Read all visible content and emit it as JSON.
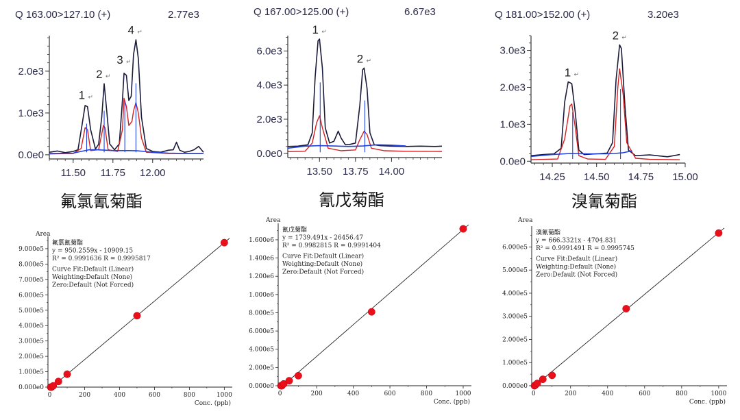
{
  "chart_data": [
    {
      "type": "line",
      "kind": "chromatogram",
      "transition": "Q 163.00>127.10 (+)",
      "intensity": "2.77e3",
      "compound": "氟氯氰菊酯",
      "x_ticks": [
        "11.50",
        "11.75",
        "12.00"
      ],
      "y_ticks": [
        "0.0e0",
        "1.0e3",
        "2.0e3"
      ],
      "xlim": [
        11.35,
        12.32
      ],
      "ylim": [
        -100,
        2850
      ],
      "peaks": [
        {
          "label": "1",
          "rt": 11.58,
          "height": 1200
        },
        {
          "label": "2",
          "rt": 11.69,
          "height": 1700
        },
        {
          "label": "3",
          "rt": 11.82,
          "height": 2050
        },
        {
          "label": "4",
          "rt": 11.89,
          "height": 2760
        }
      ],
      "series": [
        {
          "name": "black",
          "color": "#1a1a3a",
          "x": [
            11.35,
            11.4,
            11.45,
            11.5,
            11.53,
            11.555,
            11.575,
            11.59,
            11.61,
            11.64,
            11.66,
            11.68,
            11.695,
            11.71,
            11.73,
            11.76,
            11.79,
            11.81,
            11.82,
            11.835,
            11.85,
            11.865,
            11.88,
            11.895,
            11.91,
            11.93,
            11.96,
            12.0,
            12.05,
            12.1,
            12.13,
            12.15,
            12.17,
            12.2,
            12.23,
            12.26,
            12.29,
            12.32
          ],
          "y": [
            60,
            90,
            50,
            80,
            120,
            700,
            1180,
            1150,
            600,
            140,
            250,
            900,
            1700,
            1100,
            260,
            120,
            260,
            1300,
            1950,
            1900,
            1300,
            1400,
            2400,
            2750,
            2300,
            900,
            150,
            80,
            60,
            110,
            120,
            300,
            110,
            60,
            80,
            120,
            200,
            60
          ]
        },
        {
          "name": "red",
          "color": "#d42020",
          "x": [
            11.35,
            11.5,
            11.55,
            11.575,
            11.59,
            11.61,
            11.66,
            11.69,
            11.7,
            11.72,
            11.78,
            11.81,
            11.82,
            11.835,
            11.85,
            11.87,
            11.88,
            11.895,
            11.91,
            11.93,
            11.96,
            12.1,
            12.32
          ],
          "y": [
            20,
            30,
            150,
            650,
            600,
            100,
            120,
            700,
            650,
            120,
            80,
            600,
            1350,
            1150,
            700,
            800,
            1050,
            1250,
            1000,
            400,
            60,
            30,
            30
          ]
        },
        {
          "name": "blue",
          "color": "#2040e0",
          "x": [
            11.35,
            11.5,
            11.55,
            11.6,
            11.65,
            11.7,
            11.75,
            11.8,
            11.85,
            11.9,
            11.95,
            12.0,
            12.1,
            12.2,
            12.32
          ],
          "y": [
            30,
            40,
            80,
            120,
            120,
            110,
            100,
            100,
            100,
            95,
            80,
            60,
            40,
            30,
            30
          ]
        }
      ]
    },
    {
      "type": "line",
      "kind": "chromatogram",
      "transition": "Q 167.00>125.00 (+)",
      "intensity": "6.67e3",
      "compound": "氰戊菊酯",
      "x_ticks": [
        "13.50",
        "13.75",
        "14.00"
      ],
      "y_ticks": [
        "0.0e0",
        "2.0e3",
        "4.0e3",
        "6.0e3"
      ],
      "xlim": [
        13.28,
        14.35
      ],
      "ylim": [
        -250,
        6900
      ],
      "peaks": [
        {
          "label": "1",
          "rt": 13.5,
          "height": 6700
        },
        {
          "label": "2",
          "rt": 13.81,
          "height": 5000
        }
      ],
      "series": [
        {
          "name": "black",
          "color": "#1a1a3a",
          "x": [
            13.28,
            13.35,
            13.42,
            13.45,
            13.47,
            13.49,
            13.5,
            13.52,
            13.54,
            13.57,
            13.6,
            13.63,
            13.65,
            13.68,
            13.71,
            13.75,
            13.78,
            13.8,
            13.81,
            13.83,
            13.85,
            13.88,
            13.92,
            14.0,
            14.1,
            14.2,
            14.3,
            14.35
          ],
          "y": [
            400,
            420,
            500,
            1200,
            4500,
            6600,
            6700,
            5000,
            1500,
            600,
            700,
            1300,
            900,
            500,
            520,
            600,
            2800,
            4900,
            5000,
            3800,
            1200,
            500,
            450,
            420,
            400,
            420,
            400,
            420
          ]
        },
        {
          "name": "red",
          "color": "#d42020",
          "x": [
            13.28,
            13.4,
            13.45,
            13.48,
            13.5,
            13.52,
            13.56,
            13.65,
            13.75,
            13.78,
            13.81,
            13.83,
            13.86,
            13.95,
            14.1,
            14.35
          ],
          "y": [
            100,
            120,
            600,
            1800,
            2200,
            1500,
            300,
            150,
            200,
            800,
            1300,
            1100,
            300,
            150,
            120,
            110
          ]
        },
        {
          "name": "blue",
          "color": "#2040e0",
          "x": [
            13.28,
            13.4,
            13.5,
            13.6,
            13.7,
            13.8,
            13.9,
            14.0,
            14.1
          ],
          "y": [
            300,
            420,
            450,
            430,
            400,
            430,
            500,
            480,
            430
          ]
        }
      ]
    },
    {
      "type": "line",
      "kind": "chromatogram",
      "transition": "Q 181.00>152.00 (+)",
      "intensity": "3.20e3",
      "compound": "溴氰菊酯",
      "x_ticks": [
        "14.25",
        "14.50",
        "14.75",
        "15.00"
      ],
      "y_ticks": [
        "0.0e0",
        "1.0e3",
        "2.0e3",
        "3.0e3"
      ],
      "xlim": [
        14.13,
        15.0
      ],
      "ylim": [
        -50,
        3400
      ],
      "peaks": [
        {
          "label": "1",
          "rt": 14.36,
          "height": 2150
        },
        {
          "label": "2",
          "rt": 14.63,
          "height": 3150
        }
      ],
      "series": [
        {
          "name": "black",
          "color": "#1a1a3a",
          "x": [
            14.13,
            14.2,
            14.26,
            14.3,
            14.32,
            14.34,
            14.36,
            14.38,
            14.4,
            14.43,
            14.5,
            14.56,
            14.59,
            14.61,
            14.63,
            14.64,
            14.66,
            14.68,
            14.72,
            14.8,
            14.9,
            14.97
          ],
          "y": [
            150,
            180,
            200,
            350,
            1600,
            2150,
            2100,
            1300,
            300,
            180,
            200,
            220,
            500,
            2200,
            3150,
            3050,
            1500,
            300,
            150,
            170,
            120,
            180
          ]
        },
        {
          "name": "red",
          "color": "#d42020",
          "x": [
            14.13,
            14.28,
            14.32,
            14.35,
            14.36,
            14.38,
            14.4,
            14.45,
            14.55,
            14.6,
            14.62,
            14.63,
            14.65,
            14.67,
            14.72,
            14.8,
            14.97
          ],
          "y": [
            40,
            60,
            600,
            1500,
            1550,
            900,
            150,
            60,
            50,
            400,
            2000,
            2500,
            1800,
            500,
            80,
            50,
            40
          ]
        },
        {
          "name": "blue",
          "color": "#2040e0",
          "x": [
            14.13,
            14.25,
            14.35,
            14.45,
            14.55,
            14.6,
            14.65,
            14.7
          ],
          "y": [
            130,
            180,
            210,
            200,
            200,
            210,
            230,
            280
          ]
        }
      ]
    },
    {
      "type": "scatter",
      "kind": "calibration",
      "y_title": "Area",
      "compound": "氟氯氰菊酯",
      "equation": "y = 950.2559x - 10909.15",
      "r_line": "R² = 0.9991636   R = 0.9995817",
      "curve_fit": "Curve Fit:Default (Linear)",
      "weighting": "Weighting:Default (None)",
      "zero": "Zero:Default (Not Forced)",
      "x_title": "Conc. (ppb)",
      "x_ticks": [
        "0",
        "200",
        "400",
        "600",
        "800",
        "1000"
      ],
      "y_ticks": [
        "0.000e0",
        "1.000e5",
        "2.000e5",
        "3.000e5",
        "4.000e5",
        "5.000e5",
        "6.000e5",
        "7.000e5",
        "8.000e5",
        "9.000e5"
      ],
      "xlim": [
        -10,
        1030
      ],
      "ylim": [
        0,
        980000
      ],
      "slope": 950.2559,
      "intercept": -10909.15,
      "points_x": [
        5,
        10,
        20,
        50,
        100,
        500,
        1000
      ],
      "points_y": [
        0,
        0,
        8100,
        36600,
        84100,
        464200,
        939300
      ]
    },
    {
      "type": "scatter",
      "kind": "calibration",
      "y_title": "Area",
      "compound": "氰戊菊酯",
      "equation": "y = 1739.491x - 26456.47",
      "r_line": "R² = 0.9982815   R = 0.9991404",
      "curve_fit": "Curve Fit:Default (Linear)",
      "weighting": "Weighting:Default (None)",
      "zero": "Zero:Default (Not Forced)",
      "x_title": "Conc. (ppb)",
      "x_ticks": [
        "0",
        "200",
        "400",
        "600",
        "800",
        "1000"
      ],
      "y_ticks": [
        "0.000e0",
        "2.000e5",
        "4.000e5",
        "6.000e5",
        "8.000e5",
        "1.000e6",
        "1.200e6",
        "1.400e6",
        "1.600e6"
      ],
      "xlim": [
        -10,
        1030
      ],
      "ylim": [
        0,
        1780000
      ],
      "slope": 1739.491,
      "intercept": -26456.47,
      "points_x": [
        5,
        10,
        20,
        50,
        100,
        500,
        1000
      ],
      "points_y": [
        0,
        0,
        20000,
        55000,
        110000,
        810000,
        1720000
      ]
    },
    {
      "type": "scatter",
      "kind": "calibration",
      "y_title": "Area",
      "compound": "溴氰菊酯",
      "equation": "y = 666.3321x - 4704.831",
      "r_line": "R² = 0.9991491   R = 0.9995745",
      "curve_fit": "Curve Fit:Default (Linear)",
      "weighting": "Weighting:Default (None)",
      "zero": "Zero:Default (Not Forced)",
      "x_title": "Conc. (ppb)",
      "x_ticks": [
        "0",
        "200",
        "400",
        "600",
        "800",
        "1000"
      ],
      "y_ticks": [
        "0.000e0",
        "1.000e5",
        "2.000e5",
        "3.000e5",
        "4.000e5",
        "5.000e5",
        "6.000e5"
      ],
      "xlim": [
        -10,
        1030
      ],
      "ylim": [
        0,
        690000
      ],
      "slope": 666.3321,
      "intercept": -4704.831,
      "points_x": [
        5,
        10,
        20,
        50,
        100,
        500,
        1000
      ],
      "points_y": [
        0,
        3000,
        10000,
        28000,
        45000,
        333000,
        660000
      ]
    }
  ]
}
